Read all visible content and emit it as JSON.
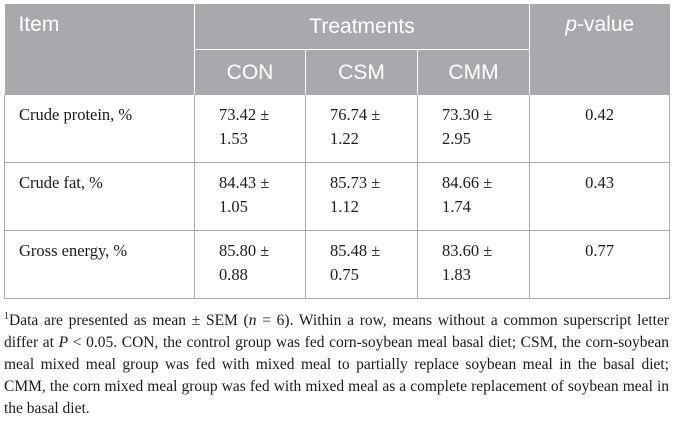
{
  "header": {
    "item": "Item",
    "treatments": "Treatments",
    "pvalue_italic": "p",
    "pvalue_rest": "-value",
    "groups": [
      "CON",
      "CSM",
      "CMM"
    ]
  },
  "rows": [
    {
      "label": "Crude protein, %",
      "con": [
        "73.42 ±",
        "1.53"
      ],
      "csm": [
        "76.74 ±",
        "1.22"
      ],
      "cmm": [
        "73.30 ±",
        "2.95"
      ],
      "p": "0.42"
    },
    {
      "label": "Crude fat, %",
      "con": [
        "84.43 ±",
        "1.05"
      ],
      "csm": [
        "85.73 ±",
        "1.12"
      ],
      "cmm": [
        "84.66 ±",
        "1.74"
      ],
      "p": "0.43"
    },
    {
      "label": "Gross energy, %",
      "con": [
        "85.80 ±",
        "0.88"
      ],
      "csm": [
        "85.48 ±",
        "0.75"
      ],
      "cmm": [
        "83.60 ±",
        "1.83"
      ],
      "p": "0.77"
    }
  ],
  "footnote": {
    "marker": "1",
    "t1": "Data are presented as mean ± SEM (",
    "n": "n",
    "t2": " = 6). Within a row, means without a common superscript letter differ at ",
    "P": "P",
    "t3": " < 0.05. CON, the control group was fed corn-soybean meal basal diet; CSM, the corn-soybean meal mixed meal group was fed with mixed meal to partially replace soybean meal in the basal diet; CMM, the corn mixed meal group was fed with mixed meal as a complete replacement of soybean meal in the basal diet."
  },
  "colors": {
    "header_bg": "#a7a9ac",
    "header_text": "#ffffff",
    "border": "#a7a9ac"
  }
}
